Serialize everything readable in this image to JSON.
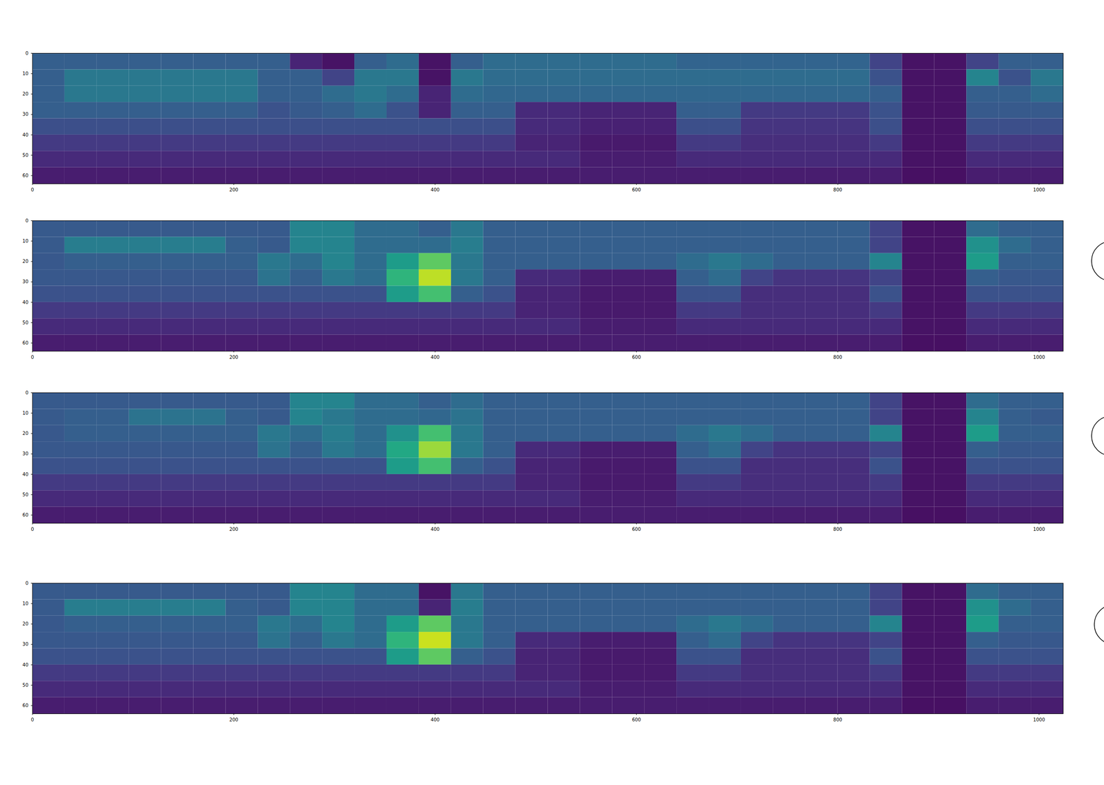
{
  "chart_data": [
    {
      "type": "heatmap",
      "xlim": [
        0,
        1024
      ],
      "ylim": [
        64,
        0
      ],
      "xticks": [
        0,
        200,
        400,
        600,
        800,
        1000
      ],
      "yticks": [
        0,
        10,
        20,
        30,
        40,
        50,
        60
      ],
      "clim": [
        0,
        1
      ],
      "cells": [
        [
          0.3,
          0.3,
          0.3,
          0.3,
          0.3,
          0.3,
          0.3,
          0.3,
          0.1,
          0.05,
          0.3,
          0.35,
          0.05,
          0.3,
          0.35,
          0.35,
          0.35,
          0.35,
          0.35,
          0.35,
          0.32,
          0.32,
          0.32,
          0.32,
          0.32,
          0.32,
          0.2,
          0.05,
          0.05,
          0.2,
          0.3,
          0.3
        ],
        [
          0.3,
          0.4,
          0.4,
          0.4,
          0.4,
          0.4,
          0.4,
          0.3,
          0.3,
          0.2,
          0.4,
          0.4,
          0.05,
          0.4,
          0.35,
          0.35,
          0.35,
          0.35,
          0.35,
          0.35,
          0.35,
          0.35,
          0.35,
          0.35,
          0.35,
          0.35,
          0.25,
          0.05,
          0.05,
          0.45,
          0.25,
          0.4
        ],
        [
          0.3,
          0.4,
          0.4,
          0.4,
          0.4,
          0.4,
          0.4,
          0.3,
          0.3,
          0.35,
          0.4,
          0.35,
          0.1,
          0.35,
          0.33,
          0.33,
          0.33,
          0.33,
          0.33,
          0.33,
          0.33,
          0.33,
          0.33,
          0.33,
          0.33,
          0.33,
          0.3,
          0.05,
          0.05,
          0.3,
          0.3,
          0.35
        ],
        [
          0.3,
          0.3,
          0.3,
          0.3,
          0.3,
          0.3,
          0.3,
          0.25,
          0.28,
          0.3,
          0.35,
          0.25,
          0.1,
          0.3,
          0.3,
          0.12,
          0.12,
          0.1,
          0.1,
          0.1,
          0.3,
          0.3,
          0.17,
          0.17,
          0.17,
          0.17,
          0.25,
          0.05,
          0.05,
          0.28,
          0.28,
          0.28
        ],
        [
          0.24,
          0.24,
          0.24,
          0.24,
          0.24,
          0.24,
          0.24,
          0.24,
          0.24,
          0.24,
          0.24,
          0.24,
          0.24,
          0.24,
          0.24,
          0.12,
          0.12,
          0.09,
          0.09,
          0.09,
          0.24,
          0.24,
          0.15,
          0.15,
          0.15,
          0.15,
          0.24,
          0.05,
          0.05,
          0.24,
          0.24,
          0.24
        ],
        [
          0.17,
          0.17,
          0.17,
          0.17,
          0.17,
          0.17,
          0.17,
          0.17,
          0.17,
          0.17,
          0.17,
          0.17,
          0.17,
          0.17,
          0.17,
          0.1,
          0.1,
          0.07,
          0.07,
          0.07,
          0.17,
          0.17,
          0.13,
          0.13,
          0.13,
          0.13,
          0.17,
          0.05,
          0.05,
          0.17,
          0.17,
          0.17
        ],
        [
          0.12,
          0.12,
          0.12,
          0.12,
          0.12,
          0.12,
          0.12,
          0.12,
          0.12,
          0.12,
          0.12,
          0.12,
          0.12,
          0.12,
          0.12,
          0.12,
          0.12,
          0.08,
          0.08,
          0.08,
          0.12,
          0.12,
          0.12,
          0.12,
          0.12,
          0.12,
          0.12,
          0.05,
          0.05,
          0.12,
          0.12,
          0.12
        ],
        [
          0.08,
          0.08,
          0.08,
          0.08,
          0.08,
          0.08,
          0.08,
          0.08,
          0.08,
          0.08,
          0.08,
          0.08,
          0.08,
          0.08,
          0.08,
          0.08,
          0.08,
          0.08,
          0.08,
          0.08,
          0.08,
          0.08,
          0.08,
          0.08,
          0.08,
          0.08,
          0.08,
          0.04,
          0.04,
          0.08,
          0.08,
          0.08
        ]
      ]
    },
    {
      "type": "heatmap",
      "xlim": [
        0,
        1024
      ],
      "ylim": [
        64,
        0
      ],
      "xticks": [
        0,
        200,
        400,
        600,
        800,
        1000
      ],
      "yticks": [
        0,
        10,
        20,
        30,
        40,
        50,
        60
      ],
      "clim": [
        0,
        1
      ],
      "cells": [
        [
          0.28,
          0.28,
          0.28,
          0.28,
          0.28,
          0.28,
          0.28,
          0.28,
          0.45,
          0.45,
          0.35,
          0.35,
          0.3,
          0.4,
          0.3,
          0.3,
          0.3,
          0.3,
          0.3,
          0.3,
          0.3,
          0.3,
          0.3,
          0.3,
          0.3,
          0.3,
          0.2,
          0.05,
          0.05,
          0.35,
          0.3,
          0.3
        ],
        [
          0.28,
          0.42,
          0.42,
          0.42,
          0.42,
          0.42,
          0.3,
          0.28,
          0.45,
          0.45,
          0.35,
          0.35,
          0.35,
          0.42,
          0.3,
          0.3,
          0.3,
          0.3,
          0.3,
          0.3,
          0.3,
          0.3,
          0.3,
          0.3,
          0.3,
          0.3,
          0.2,
          0.05,
          0.05,
          0.5,
          0.35,
          0.3
        ],
        [
          0.27,
          0.3,
          0.3,
          0.3,
          0.3,
          0.3,
          0.3,
          0.4,
          0.35,
          0.45,
          0.35,
          0.55,
          0.75,
          0.4,
          0.3,
          0.3,
          0.3,
          0.3,
          0.3,
          0.3,
          0.35,
          0.4,
          0.35,
          0.3,
          0.3,
          0.3,
          0.45,
          0.05,
          0.05,
          0.55,
          0.3,
          0.3
        ],
        [
          0.27,
          0.27,
          0.27,
          0.27,
          0.27,
          0.27,
          0.27,
          0.38,
          0.3,
          0.4,
          0.35,
          0.65,
          0.9,
          0.4,
          0.3,
          0.12,
          0.12,
          0.08,
          0.08,
          0.08,
          0.3,
          0.35,
          0.2,
          0.15,
          0.15,
          0.15,
          0.2,
          0.05,
          0.05,
          0.3,
          0.27,
          0.27
        ],
        [
          0.25,
          0.25,
          0.25,
          0.25,
          0.25,
          0.25,
          0.25,
          0.25,
          0.25,
          0.25,
          0.25,
          0.55,
          0.7,
          0.3,
          0.25,
          0.1,
          0.1,
          0.07,
          0.07,
          0.07,
          0.25,
          0.25,
          0.13,
          0.13,
          0.13,
          0.13,
          0.25,
          0.05,
          0.05,
          0.25,
          0.25,
          0.25
        ],
        [
          0.17,
          0.17,
          0.17,
          0.17,
          0.17,
          0.17,
          0.17,
          0.17,
          0.17,
          0.17,
          0.17,
          0.17,
          0.17,
          0.17,
          0.17,
          0.1,
          0.1,
          0.07,
          0.07,
          0.07,
          0.17,
          0.17,
          0.13,
          0.13,
          0.13,
          0.13,
          0.17,
          0.05,
          0.05,
          0.17,
          0.17,
          0.17
        ],
        [
          0.12,
          0.12,
          0.12,
          0.12,
          0.12,
          0.12,
          0.12,
          0.12,
          0.12,
          0.12,
          0.12,
          0.12,
          0.12,
          0.12,
          0.12,
          0.12,
          0.12,
          0.08,
          0.08,
          0.08,
          0.12,
          0.12,
          0.12,
          0.12,
          0.12,
          0.12,
          0.12,
          0.05,
          0.05,
          0.12,
          0.12,
          0.12
        ],
        [
          0.08,
          0.08,
          0.08,
          0.08,
          0.08,
          0.08,
          0.08,
          0.08,
          0.08,
          0.08,
          0.08,
          0.08,
          0.08,
          0.08,
          0.08,
          0.08,
          0.08,
          0.08,
          0.08,
          0.08,
          0.08,
          0.08,
          0.08,
          0.08,
          0.08,
          0.08,
          0.08,
          0.04,
          0.04,
          0.08,
          0.08,
          0.08
        ]
      ]
    },
    {
      "type": "heatmap",
      "xlim": [
        0,
        1024
      ],
      "ylim": [
        64,
        0
      ],
      "xticks": [
        0,
        200,
        400,
        600,
        800,
        1000
      ],
      "yticks": [
        0,
        10,
        20,
        30,
        40,
        50,
        60
      ],
      "clim": [
        0,
        1
      ],
      "cells": [
        [
          0.28,
          0.28,
          0.28,
          0.28,
          0.28,
          0.28,
          0.28,
          0.28,
          0.45,
          0.45,
          0.35,
          0.35,
          0.3,
          0.35,
          0.3,
          0.3,
          0.3,
          0.3,
          0.3,
          0.3,
          0.3,
          0.3,
          0.3,
          0.3,
          0.3,
          0.3,
          0.2,
          0.05,
          0.05,
          0.35,
          0.3,
          0.3
        ],
        [
          0.28,
          0.3,
          0.3,
          0.38,
          0.38,
          0.38,
          0.3,
          0.28,
          0.45,
          0.4,
          0.35,
          0.35,
          0.33,
          0.38,
          0.3,
          0.3,
          0.3,
          0.3,
          0.3,
          0.3,
          0.3,
          0.3,
          0.3,
          0.3,
          0.3,
          0.3,
          0.2,
          0.05,
          0.05,
          0.45,
          0.3,
          0.28
        ],
        [
          0.27,
          0.3,
          0.3,
          0.3,
          0.3,
          0.3,
          0.3,
          0.4,
          0.35,
          0.42,
          0.35,
          0.5,
          0.7,
          0.4,
          0.3,
          0.3,
          0.3,
          0.3,
          0.3,
          0.3,
          0.35,
          0.4,
          0.35,
          0.3,
          0.3,
          0.3,
          0.45,
          0.05,
          0.05,
          0.55,
          0.3,
          0.3
        ],
        [
          0.27,
          0.27,
          0.27,
          0.27,
          0.27,
          0.27,
          0.27,
          0.38,
          0.3,
          0.4,
          0.35,
          0.6,
          0.85,
          0.4,
          0.3,
          0.12,
          0.12,
          0.08,
          0.08,
          0.08,
          0.3,
          0.35,
          0.2,
          0.15,
          0.15,
          0.15,
          0.2,
          0.05,
          0.05,
          0.3,
          0.27,
          0.27
        ],
        [
          0.25,
          0.25,
          0.25,
          0.25,
          0.25,
          0.25,
          0.25,
          0.25,
          0.25,
          0.25,
          0.25,
          0.55,
          0.7,
          0.3,
          0.25,
          0.1,
          0.1,
          0.07,
          0.07,
          0.07,
          0.25,
          0.25,
          0.13,
          0.13,
          0.13,
          0.13,
          0.25,
          0.05,
          0.05,
          0.25,
          0.25,
          0.25
        ],
        [
          0.17,
          0.17,
          0.17,
          0.17,
          0.17,
          0.17,
          0.17,
          0.17,
          0.17,
          0.17,
          0.17,
          0.17,
          0.17,
          0.17,
          0.17,
          0.1,
          0.1,
          0.07,
          0.07,
          0.07,
          0.17,
          0.17,
          0.13,
          0.13,
          0.13,
          0.13,
          0.17,
          0.05,
          0.05,
          0.17,
          0.17,
          0.17
        ],
        [
          0.12,
          0.12,
          0.12,
          0.12,
          0.12,
          0.12,
          0.12,
          0.12,
          0.12,
          0.12,
          0.12,
          0.12,
          0.12,
          0.12,
          0.12,
          0.12,
          0.12,
          0.08,
          0.08,
          0.08,
          0.12,
          0.12,
          0.12,
          0.12,
          0.12,
          0.12,
          0.12,
          0.05,
          0.05,
          0.12,
          0.12,
          0.12
        ],
        [
          0.08,
          0.08,
          0.08,
          0.08,
          0.08,
          0.08,
          0.08,
          0.08,
          0.08,
          0.08,
          0.08,
          0.08,
          0.08,
          0.08,
          0.08,
          0.08,
          0.08,
          0.08,
          0.08,
          0.08,
          0.08,
          0.08,
          0.08,
          0.08,
          0.08,
          0.08,
          0.08,
          0.04,
          0.04,
          0.08,
          0.08,
          0.08
        ]
      ]
    },
    {
      "type": "heatmap",
      "xlim": [
        0,
        1024
      ],
      "ylim": [
        64,
        0
      ],
      "xticks": [
        0,
        200,
        400,
        600,
        800,
        1000
      ],
      "yticks": [
        0,
        10,
        20,
        30,
        40,
        50,
        60
      ],
      "clim": [
        0,
        1
      ],
      "cells": [
        [
          0.28,
          0.28,
          0.28,
          0.28,
          0.28,
          0.28,
          0.28,
          0.28,
          0.45,
          0.45,
          0.35,
          0.35,
          0.05,
          0.4,
          0.3,
          0.3,
          0.3,
          0.3,
          0.3,
          0.3,
          0.3,
          0.3,
          0.3,
          0.3,
          0.3,
          0.3,
          0.2,
          0.05,
          0.05,
          0.35,
          0.3,
          0.3
        ],
        [
          0.28,
          0.42,
          0.42,
          0.42,
          0.42,
          0.42,
          0.3,
          0.28,
          0.45,
          0.45,
          0.35,
          0.35,
          0.1,
          0.42,
          0.3,
          0.3,
          0.3,
          0.3,
          0.3,
          0.3,
          0.3,
          0.3,
          0.3,
          0.3,
          0.3,
          0.3,
          0.2,
          0.05,
          0.05,
          0.5,
          0.35,
          0.3
        ],
        [
          0.27,
          0.3,
          0.3,
          0.3,
          0.3,
          0.3,
          0.3,
          0.4,
          0.35,
          0.45,
          0.35,
          0.55,
          0.75,
          0.4,
          0.3,
          0.3,
          0.3,
          0.3,
          0.3,
          0.3,
          0.35,
          0.4,
          0.35,
          0.3,
          0.3,
          0.3,
          0.45,
          0.05,
          0.05,
          0.55,
          0.3,
          0.3
        ],
        [
          0.27,
          0.27,
          0.27,
          0.27,
          0.27,
          0.27,
          0.27,
          0.38,
          0.3,
          0.4,
          0.35,
          0.65,
          0.92,
          0.4,
          0.3,
          0.12,
          0.12,
          0.08,
          0.08,
          0.08,
          0.3,
          0.35,
          0.2,
          0.15,
          0.15,
          0.15,
          0.2,
          0.05,
          0.05,
          0.3,
          0.27,
          0.27
        ],
        [
          0.25,
          0.25,
          0.25,
          0.25,
          0.25,
          0.25,
          0.25,
          0.25,
          0.25,
          0.25,
          0.25,
          0.55,
          0.75,
          0.3,
          0.25,
          0.1,
          0.1,
          0.07,
          0.07,
          0.07,
          0.25,
          0.25,
          0.13,
          0.13,
          0.13,
          0.13,
          0.25,
          0.05,
          0.05,
          0.25,
          0.25,
          0.25
        ],
        [
          0.17,
          0.17,
          0.17,
          0.17,
          0.17,
          0.17,
          0.17,
          0.17,
          0.17,
          0.17,
          0.17,
          0.17,
          0.17,
          0.17,
          0.17,
          0.1,
          0.1,
          0.07,
          0.07,
          0.07,
          0.17,
          0.17,
          0.13,
          0.13,
          0.13,
          0.13,
          0.17,
          0.05,
          0.05,
          0.17,
          0.17,
          0.17
        ],
        [
          0.12,
          0.12,
          0.12,
          0.12,
          0.12,
          0.12,
          0.12,
          0.12,
          0.12,
          0.12,
          0.12,
          0.12,
          0.12,
          0.12,
          0.12,
          0.12,
          0.12,
          0.08,
          0.08,
          0.08,
          0.12,
          0.12,
          0.12,
          0.12,
          0.12,
          0.12,
          0.12,
          0.05,
          0.05,
          0.12,
          0.12,
          0.12
        ],
        [
          0.08,
          0.08,
          0.08,
          0.08,
          0.08,
          0.08,
          0.08,
          0.08,
          0.08,
          0.08,
          0.08,
          0.08,
          0.08,
          0.08,
          0.08,
          0.08,
          0.08,
          0.08,
          0.08,
          0.08,
          0.08,
          0.08,
          0.08,
          0.08,
          0.08,
          0.08,
          0.08,
          0.04,
          0.04,
          0.08,
          0.08,
          0.08
        ]
      ]
    }
  ]
}
